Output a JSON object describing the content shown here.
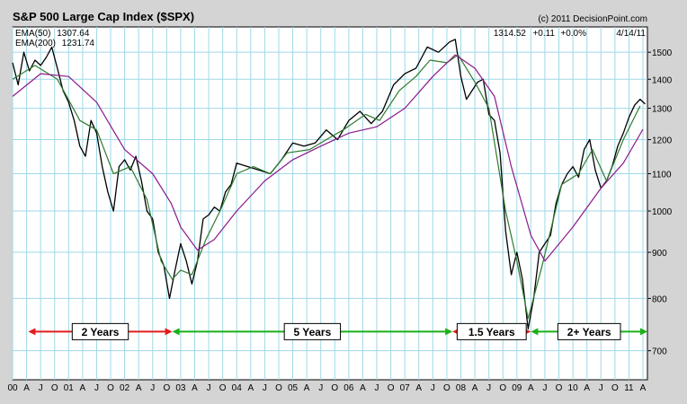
{
  "header": {
    "title": "S&P 500 Large Cap Index ($SPX)",
    "copyright": "(c) 2011 DecisionPoint.com",
    "quote": {
      "last": "1314.52",
      "change": "+0.11",
      "percent": "+0.0%",
      "date": "4/14/11"
    }
  },
  "legend": [
    {
      "label": "EMA(50)",
      "value": "1307.64",
      "color": "#2f7a2f"
    },
    {
      "label": "EMA(200)",
      "value": "1231.74",
      "color": "#8b1a8b"
    }
  ],
  "colors": {
    "background": "#d4d4d4",
    "plot_background": "#ffffff",
    "grid": "#9fd8e6",
    "price": "#000000",
    "ema50": "#2f7a2f",
    "ema200": "#8b1a8b",
    "arrow_red": "#e41c1c",
    "arrow_green": "#19b019"
  },
  "chart_data": {
    "type": "line",
    "ylim": [
      650,
      1600
    ],
    "y_scale": "log",
    "y_ticks": [
      700,
      800,
      900,
      1000,
      1100,
      1200,
      1300,
      1400,
      1500
    ],
    "x_tick_labels": [
      "00",
      "A",
      "J",
      "O",
      "01",
      "A",
      "J",
      "O",
      "02",
      "A",
      "J",
      "O",
      "03",
      "A",
      "J",
      "O",
      "04",
      "A",
      "J",
      "O",
      "05",
      "A",
      "J",
      "O",
      "06",
      "A",
      "J",
      "O",
      "07",
      "A",
      "J",
      "O",
      "08",
      "A",
      "J",
      "O",
      "09",
      "A",
      "J",
      "O",
      "10",
      "A",
      "J",
      "O",
      "11",
      "A"
    ],
    "x_range": [
      2000.0,
      2011.33
    ],
    "grid": true,
    "series": [
      {
        "name": "EMA(200)",
        "color_key": "ema200",
        "x": [
          2000.0,
          2000.5,
          2001.0,
          2001.5,
          2002.0,
          2002.5,
          2002.83,
          2003.0,
          2003.3,
          2003.6,
          2004.0,
          2004.5,
          2005.0,
          2005.5,
          2006.0,
          2006.5,
          2007.0,
          2007.5,
          2007.9,
          2008.25,
          2008.6,
          2008.9,
          2009.25,
          2009.5,
          2010.0,
          2010.5,
          2010.9,
          2011.25
        ],
        "values": [
          1340,
          1420,
          1410,
          1320,
          1170,
          1100,
          1020,
          960,
          905,
          930,
          1000,
          1080,
          1140,
          1180,
          1220,
          1240,
          1300,
          1410,
          1490,
          1440,
          1340,
          1120,
          940,
          880,
          960,
          1060,
          1130,
          1232
        ]
      },
      {
        "name": "EMA(50)",
        "color_key": "ema50",
        "x": [
          2000.0,
          2000.4,
          2000.8,
          2001.2,
          2001.5,
          2001.8,
          2002.1,
          2002.4,
          2002.65,
          2002.85,
          2003.0,
          2003.2,
          2003.45,
          2003.7,
          2004.0,
          2004.3,
          2004.6,
          2004.9,
          2005.3,
          2005.6,
          2005.9,
          2006.3,
          2006.55,
          2006.9,
          2007.2,
          2007.45,
          2007.75,
          2007.95,
          2008.25,
          2008.5,
          2008.8,
          2009.0,
          2009.2,
          2009.45,
          2009.8,
          2010.1,
          2010.35,
          2010.6,
          2010.9,
          2011.2
        ],
        "values": [
          1400,
          1450,
          1400,
          1260,
          1230,
          1100,
          1120,
          1030,
          880,
          840,
          860,
          850,
          930,
          1000,
          1100,
          1120,
          1100,
          1160,
          1170,
          1200,
          1230,
          1280,
          1260,
          1360,
          1410,
          1470,
          1460,
          1490,
          1390,
          1300,
          1000,
          880,
          760,
          870,
          1070,
          1100,
          1170,
          1080,
          1200,
          1308
        ]
      },
      {
        "name": "",
        "color_key": "price",
        "x": [
          2000.0,
          2000.1,
          2000.2,
          2000.3,
          2000.4,
          2000.5,
          2000.6,
          2000.7,
          2000.8,
          2000.9,
          2001.0,
          2001.1,
          2001.2,
          2001.3,
          2001.4,
          2001.5,
          2001.6,
          2001.7,
          2001.8,
          2001.9,
          2002.0,
          2002.1,
          2002.2,
          2002.3,
          2002.4,
          2002.5,
          2002.6,
          2002.7,
          2002.8,
          2002.9,
          2003.0,
          2003.1,
          2003.2,
          2003.3,
          2003.4,
          2003.5,
          2003.6,
          2003.7,
          2003.8,
          2003.9,
          2004.0,
          2004.2,
          2004.4,
          2004.6,
          2004.8,
          2005.0,
          2005.2,
          2005.4,
          2005.6,
          2005.8,
          2006.0,
          2006.2,
          2006.4,
          2006.6,
          2006.8,
          2007.0,
          2007.2,
          2007.4,
          2007.6,
          2007.8,
          2007.9,
          2008.0,
          2008.1,
          2008.2,
          2008.3,
          2008.4,
          2008.5,
          2008.6,
          2008.7,
          2008.8,
          2008.9,
          2009.0,
          2009.1,
          2009.2,
          2009.3,
          2009.4,
          2009.5,
          2009.6,
          2009.7,
          2009.8,
          2009.9,
          2010.0,
          2010.1,
          2010.2,
          2010.3,
          2010.4,
          2010.5,
          2010.6,
          2010.7,
          2010.8,
          2010.9,
          2011.0,
          2011.1,
          2011.2,
          2011.29
        ],
        "values": [
          1460,
          1380,
          1500,
          1430,
          1470,
          1450,
          1480,
          1520,
          1440,
          1360,
          1320,
          1260,
          1180,
          1150,
          1260,
          1220,
          1120,
          1050,
          1000,
          1120,
          1140,
          1110,
          1150,
          1080,
          1000,
          980,
          900,
          870,
          800,
          860,
          920,
          880,
          830,
          880,
          980,
          990,
          1010,
          1000,
          1050,
          1070,
          1130,
          1120,
          1110,
          1100,
          1140,
          1190,
          1180,
          1190,
          1230,
          1200,
          1260,
          1290,
          1250,
          1290,
          1380,
          1420,
          1440,
          1520,
          1500,
          1540,
          1550,
          1410,
          1330,
          1360,
          1390,
          1400,
          1280,
          1260,
          1160,
          950,
          850,
          900,
          840,
          740,
          800,
          900,
          920,
          940,
          1020,
          1070,
          1100,
          1120,
          1090,
          1170,
          1200,
          1110,
          1060,
          1080,
          1120,
          1180,
          1220,
          1270,
          1310,
          1330,
          1314
        ]
      }
    ],
    "annotations": [
      {
        "label": "2 Years",
        "x_start": 2000.28,
        "x_end": 2002.85,
        "y": 735,
        "color_key": "arrow_red"
      },
      {
        "label": "5 Years",
        "x_start": 2002.85,
        "x_end": 2007.85,
        "y": 735,
        "color_key": "arrow_green"
      },
      {
        "label": "1.5 Years",
        "x_start": 2007.85,
        "x_end": 2009.25,
        "y": 735,
        "color_key": "arrow_red"
      },
      {
        "label": "2+ Years",
        "x_start": 2009.25,
        "x_end": 2011.33,
        "y": 735,
        "color_key": "arrow_green"
      }
    ]
  }
}
